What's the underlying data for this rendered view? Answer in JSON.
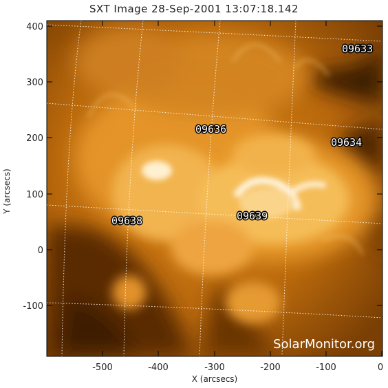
{
  "title": "SXT Image 28-Sep-2001 13:07:18.142",
  "xaxis": {
    "label": "X (arcsecs)",
    "ticks": [
      "-500",
      "-400",
      "-300",
      "-200",
      "-100",
      "0"
    ],
    "range": [
      -600,
      0
    ]
  },
  "yaxis": {
    "label": "Y (arcsecs)",
    "ticks": [
      "400",
      "300",
      "200",
      "100",
      "0",
      "-100"
    ],
    "range": [
      -200,
      410
    ]
  },
  "regions": [
    {
      "label": "09633"
    },
    {
      "label": "09636"
    },
    {
      "label": "09634"
    },
    {
      "label": "09638"
    },
    {
      "label": "09639"
    }
  ],
  "watermark": "SolarMonitor.org",
  "colors": {
    "background": "#ffffff",
    "solar_bright": "#fff2d8",
    "solar_mid": "#e08a20",
    "solar_dark": "#3a1d02"
  }
}
